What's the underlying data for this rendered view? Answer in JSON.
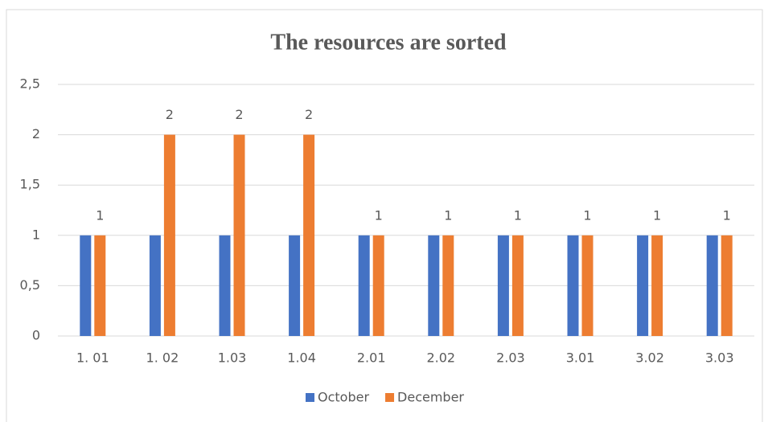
{
  "chart_data": {
    "type": "bar",
    "title": "The resources are sorted",
    "categories": [
      "1. 01",
      "1. 02",
      "1.03",
      "1.04",
      "2.01",
      "2.02",
      "2.03",
      "3.01",
      "3.02",
      "3.03"
    ],
    "series": [
      {
        "name": "October",
        "color": "#4472c4",
        "values": [
          1,
          1,
          1,
          1,
          1,
          1,
          1,
          1,
          1,
          1
        ],
        "data_labels": false
      },
      {
        "name": "December",
        "color": "#ed7d31",
        "values": [
          1,
          2,
          2,
          2,
          1,
          1,
          1,
          1,
          1,
          1
        ],
        "data_labels": true
      }
    ],
    "ylim": [
      0,
      2.5
    ],
    "yticks": [
      0,
      {
        "value": 0.5,
        "label": "0,5"
      },
      1,
      {
        "value": 1.5,
        "label": "1,5"
      },
      2,
      {
        "value": 2.5,
        "label": "2,5"
      }
    ],
    "grid": true,
    "legend": "bottom"
  }
}
